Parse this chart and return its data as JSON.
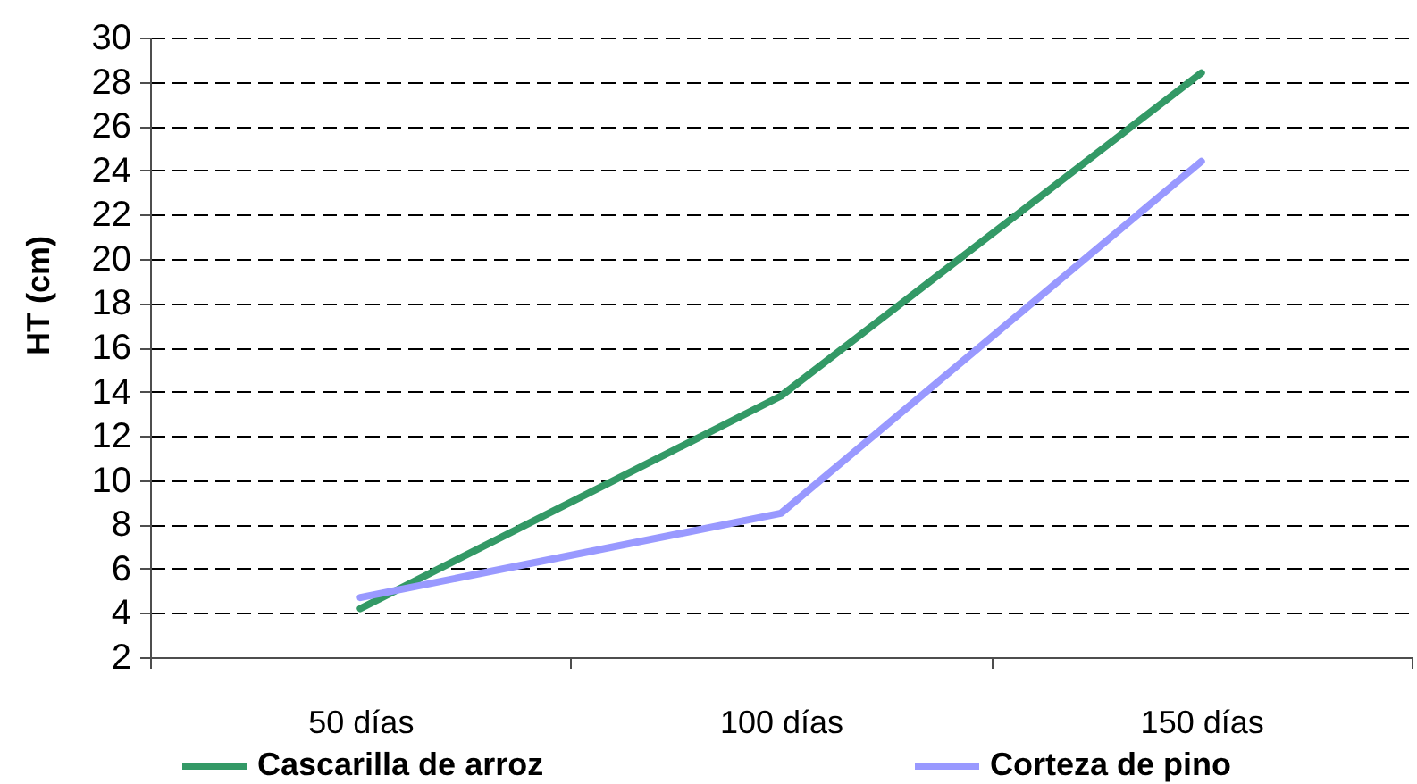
{
  "chart_data": {
    "type": "line",
    "ylabel": "HT (cm)",
    "categories": [
      "50 días",
      "100 días",
      "150 días"
    ],
    "series": [
      {
        "name": "Cascarilla de arroz",
        "color": "#339966",
        "values": [
          4.2,
          13.8,
          28.4
        ]
      },
      {
        "name": "Corteza de pino",
        "color": "#9999ff",
        "values": [
          4.7,
          8.5,
          24.4
        ]
      }
    ],
    "ylim": [
      2,
      30
    ],
    "yticks": [
      2,
      4,
      6,
      8,
      10,
      12,
      14,
      16,
      18,
      20,
      22,
      24,
      26,
      28,
      30
    ],
    "grid": "y",
    "legend": "bottom",
    "line_style": "solid",
    "marker": "none"
  }
}
